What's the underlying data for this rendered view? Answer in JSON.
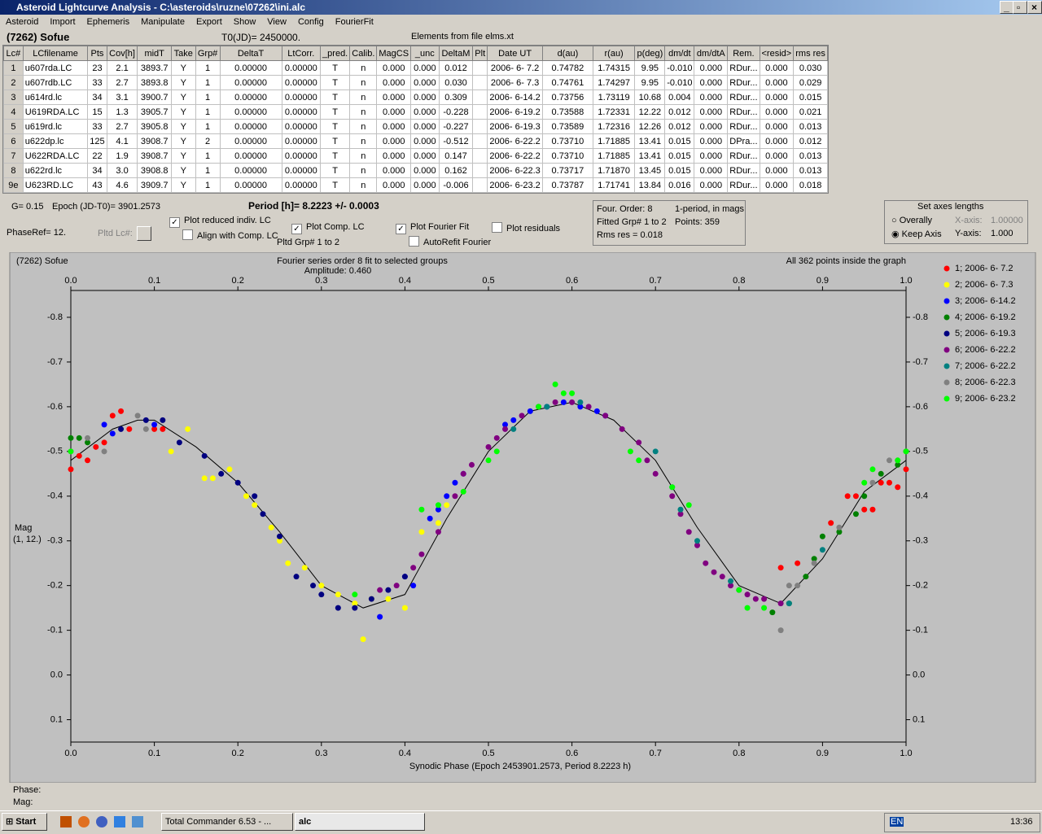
{
  "window": {
    "title": "Asteroid Lightcurve Analysis - C:\\asteroids\\ruzne\\07262\\ini.alc"
  },
  "menu": [
    "Asteroid",
    "Import",
    "Ephemeris",
    "Manipulate",
    "Export",
    "Show",
    "View",
    "Config",
    "FourierFit"
  ],
  "header": {
    "object": "(7262) Sofue",
    "t0": "T0(JD)= 2450000.",
    "elements": "Elements from file elms.xt"
  },
  "table": {
    "columns": [
      "Lc#",
      "LCfilename",
      "Pts",
      "Cov[h]",
      "midT",
      "Take",
      "Grp#",
      "DeltaT",
      "LtCorr.",
      "_pred.",
      "Calib.",
      "MagCS",
      "_unc",
      "DeltaM",
      "Plt",
      "Date UT",
      "d(au)",
      "r(au)",
      "p(deg)",
      "dm/dt",
      "dm/dtA",
      "Rem.",
      "<resid>",
      "rms res"
    ],
    "rows": [
      [
        "1",
        "u607rda.LC",
        "23",
        "2.1",
        "3893.7",
        "Y",
        "1",
        "0.00000",
        "0.00000",
        "T",
        "n",
        "0.000",
        "0.000",
        "0.012",
        null,
        "2006- 6- 7.2",
        "0.74782",
        "1.74315",
        "9.95",
        "-0.010",
        "0.000",
        "RDur...",
        "0.000",
        "0.030"
      ],
      [
        "2",
        "u607rdb.LC",
        "33",
        "2.7",
        "3893.8",
        "Y",
        "1",
        "0.00000",
        "0.00000",
        "T",
        "n",
        "0.000",
        "0.000",
        "0.030",
        null,
        "2006- 6- 7.3",
        "0.74761",
        "1.74297",
        "9.95",
        "-0.010",
        "0.000",
        "RDur...",
        "0.000",
        "0.029"
      ],
      [
        "3",
        "u614rd.lc",
        "34",
        "3.1",
        "3900.7",
        "Y",
        "1",
        "0.00000",
        "0.00000",
        "T",
        "n",
        "0.000",
        "0.000",
        "0.309",
        null,
        "2006- 6-14.2",
        "0.73756",
        "1.73119",
        "10.68",
        "0.004",
        "0.000",
        "RDur...",
        "0.000",
        "0.015"
      ],
      [
        "4",
        "U619RDA.LC",
        "15",
        "1.3",
        "3905.7",
        "Y",
        "1",
        "0.00000",
        "0.00000",
        "T",
        "n",
        "0.000",
        "0.000",
        "-0.228",
        null,
        "2006- 6-19.2",
        "0.73588",
        "1.72331",
        "12.22",
        "0.012",
        "0.000",
        "RDur...",
        "0.000",
        "0.021"
      ],
      [
        "5",
        "u619rd.lc",
        "33",
        "2.7",
        "3905.8",
        "Y",
        "1",
        "0.00000",
        "0.00000",
        "T",
        "n",
        "0.000",
        "0.000",
        "-0.227",
        null,
        "2006- 6-19.3",
        "0.73589",
        "1.72316",
        "12.26",
        "0.012",
        "0.000",
        "RDur...",
        "0.000",
        "0.013"
      ],
      [
        "6",
        "u622dp.lc",
        "125",
        "4.1",
        "3908.7",
        "Y",
        "2",
        "0.00000",
        "0.00000",
        "T",
        "n",
        "0.000",
        "0.000",
        "-0.512",
        null,
        "2006- 6-22.2",
        "0.73710",
        "1.71885",
        "13.41",
        "0.015",
        "0.000",
        "DPra...",
        "0.000",
        "0.012"
      ],
      [
        "7",
        "U622RDA.LC",
        "22",
        "1.9",
        "3908.7",
        "Y",
        "1",
        "0.00000",
        "0.00000",
        "T",
        "n",
        "0.000",
        "0.000",
        "0.147",
        null,
        "2006- 6-22.2",
        "0.73710",
        "1.71885",
        "13.41",
        "0.015",
        "0.000",
        "RDur...",
        "0.000",
        "0.013"
      ],
      [
        "8",
        "u622rd.lc",
        "34",
        "3.0",
        "3908.8",
        "Y",
        "1",
        "0.00000",
        "0.00000",
        "T",
        "n",
        "0.000",
        "0.000",
        "0.162",
        null,
        "2006- 6-22.3",
        "0.73717",
        "1.71870",
        "13.45",
        "0.015",
        "0.000",
        "RDur...",
        "0.000",
        "0.013"
      ],
      [
        "9e",
        "U623RD.LC",
        "43",
        "4.6",
        "3909.7",
        "Y",
        "1",
        "0.00000",
        "0.00000",
        "T",
        "n",
        "0.000",
        "0.000",
        "-0.006",
        null,
        "2006- 6-23.2",
        "0.73787",
        "1.71741",
        "13.84",
        "0.016",
        "0.000",
        "RDur...",
        "0.000",
        "0.018"
      ]
    ]
  },
  "controls": {
    "g": "G= 0.15",
    "epoch": "Epoch (JD-T0)= 3901.2573",
    "period": "Period [h]= 8.2223 +/- 0.0003",
    "phase_ref": "PhaseRef= 12.",
    "pltd_lc": "Pltd Lc#:",
    "checkboxes": [
      {
        "label": "Plot reduced indiv. LC",
        "checked": true
      },
      {
        "label": "Align with Comp. LC",
        "checked": false
      },
      {
        "label": "Plot Comp. LC",
        "checked": true
      },
      {
        "label": "Plot Fourier Fit",
        "checked": true
      },
      {
        "label": "AutoRefit Fourier",
        "checked": false
      },
      {
        "label": "Plot residuals",
        "checked": false
      }
    ],
    "pltd_grp": "Pltd Grp#  1   to   2",
    "info": [
      "Four. Order:  8",
      "1-period, in mags",
      "Fitted Grp# 1 to 2",
      "Points: 359",
      "Rms res      = 0.018"
    ],
    "axes": {
      "title": "Set axes lengths",
      "overally": "Overally",
      "keep": "Keep Axis",
      "x_label": "X-axis:",
      "x_value": "1.00000",
      "y_label": "Y-axis:",
      "y_value": "1.000"
    }
  },
  "chart_data": {
    "type": "scatter",
    "title": "Fourier series order 8 fit to selected groups",
    "subtitle": "Amplitude: 0.460",
    "object": "(7262) Sofue",
    "annotation": "All 362 points inside the graph",
    "x_label": "Synodic Phase (Epoch 2453901.2573, Period 8.2223 h)",
    "y_label": [
      "Mag",
      "(1, 12.)"
    ],
    "xlim": [
      0,
      1
    ],
    "xticks": [
      {
        "value": 0,
        "label": "0.0"
      },
      0.1,
      0.2,
      0.3,
      0.4,
      0.5,
      0.6,
      0.7,
      0.8,
      0.9,
      {
        "value": 1,
        "label": "1.0"
      }
    ],
    "ylim": [
      -0.86,
      0.15
    ],
    "y_inverted": true,
    "yticks": [
      -0.8,
      -0.7,
      -0.6,
      -0.5,
      -0.4,
      -0.3,
      -0.2,
      -0.1,
      {
        "value": 0,
        "label": "0.0"
      },
      0.1
    ],
    "series": [
      {
        "name": "1; 2006- 6- 7.2",
        "color": "#ff0000",
        "x": [
          0.0,
          0.01,
          0.02,
          0.03,
          0.04,
          0.05,
          0.06,
          0.07,
          0.1,
          0.11,
          0.85,
          0.87,
          0.91,
          0.93,
          0.94,
          0.95,
          0.96,
          0.97,
          0.98,
          0.99,
          1.0
        ],
        "values": [
          -0.46,
          -0.49,
          -0.48,
          -0.51,
          -0.52,
          -0.58,
          -0.59,
          -0.55,
          -0.55,
          -0.55,
          -0.24,
          -0.25,
          -0.34,
          -0.4,
          -0.4,
          -0.37,
          -0.37,
          -0.43,
          -0.43,
          -0.42,
          -0.46
        ]
      },
      {
        "name": "2; 2006- 6- 7.3",
        "color": "#ffff00",
        "x": [
          0.12,
          0.14,
          0.16,
          0.17,
          0.19,
          0.21,
          0.22,
          0.24,
          0.25,
          0.26,
          0.28,
          0.3,
          0.32,
          0.34,
          0.35,
          0.36,
          0.38,
          0.4,
          0.42,
          0.44,
          0.45
        ],
        "values": [
          -0.5,
          -0.55,
          -0.44,
          -0.44,
          -0.46,
          -0.4,
          -0.38,
          -0.33,
          -0.3,
          -0.25,
          -0.24,
          -0.2,
          -0.18,
          -0.16,
          -0.08,
          -0.17,
          -0.17,
          -0.15,
          -0.32,
          -0.34,
          -0.38
        ]
      },
      {
        "name": "3; 2006- 6-14.2",
        "color": "#0000ff",
        "x": [
          0.04,
          0.05,
          0.1,
          0.37,
          0.4,
          0.41,
          0.43,
          0.44,
          0.45,
          0.46,
          0.47,
          0.52,
          0.53,
          0.55,
          0.57,
          0.59,
          0.61,
          0.63,
          0.64
        ],
        "values": [
          -0.56,
          -0.54,
          -0.56,
          -0.13,
          -0.22,
          -0.2,
          -0.35,
          -0.37,
          -0.4,
          -0.43,
          -0.45,
          -0.56,
          -0.57,
          -0.59,
          -0.6,
          -0.61,
          -0.6,
          -0.59,
          -0.58
        ]
      },
      {
        "name": "4; 2006- 6-19.2",
        "color": "#008000",
        "x": [
          0.0,
          0.01,
          0.02,
          0.84,
          0.86,
          0.88,
          0.89,
          0.9,
          0.92,
          0.94,
          0.95,
          0.97,
          0.99,
          1.0
        ],
        "values": [
          -0.53,
          -0.53,
          -0.52,
          -0.14,
          -0.16,
          -0.22,
          -0.26,
          -0.31,
          -0.32,
          -0.36,
          -0.4,
          -0.45,
          -0.47,
          -0.5
        ]
      },
      {
        "name": "5; 2006- 6-19.3",
        "color": "#000080",
        "x": [
          0.06,
          0.09,
          0.11,
          0.13,
          0.16,
          0.18,
          0.2,
          0.22,
          0.23,
          0.25,
          0.27,
          0.29,
          0.3,
          0.32,
          0.34,
          0.36,
          0.38,
          0.4
        ],
        "values": [
          -0.55,
          -0.57,
          -0.57,
          -0.52,
          -0.49,
          -0.45,
          -0.43,
          -0.4,
          -0.36,
          -0.31,
          -0.22,
          -0.2,
          -0.18,
          -0.15,
          -0.15,
          -0.17,
          -0.19,
          -0.22
        ]
      },
      {
        "name": "6; 2006- 6-22.2",
        "color": "#800080",
        "x": [
          0.37,
          0.39,
          0.41,
          0.42,
          0.44,
          0.46,
          0.47,
          0.48,
          0.5,
          0.51,
          0.52,
          0.54,
          0.56,
          0.58,
          0.6,
          0.62,
          0.64,
          0.66,
          0.68,
          0.69,
          0.7,
          0.72,
          0.73,
          0.74,
          0.75,
          0.76,
          0.77,
          0.78,
          0.79,
          0.8,
          0.81,
          0.82,
          0.83,
          0.85
        ],
        "values": [
          -0.19,
          -0.2,
          -0.24,
          -0.27,
          -0.32,
          -0.4,
          -0.45,
          -0.47,
          -0.51,
          -0.53,
          -0.55,
          -0.58,
          -0.6,
          -0.61,
          -0.61,
          -0.6,
          -0.58,
          -0.55,
          -0.52,
          -0.48,
          -0.45,
          -0.4,
          -0.36,
          -0.32,
          -0.29,
          -0.25,
          -0.23,
          -0.22,
          -0.2,
          -0.19,
          -0.18,
          -0.17,
          -0.17,
          -0.16
        ]
      },
      {
        "name": "7; 2006- 6-22.2",
        "color": "#008080",
        "x": [
          0.53,
          0.57,
          0.61,
          0.7,
          0.72,
          0.73,
          0.75,
          0.79,
          0.86,
          0.9
        ],
        "values": [
          -0.55,
          -0.6,
          -0.61,
          -0.5,
          -0.42,
          -0.37,
          -0.3,
          -0.21,
          -0.16,
          -0.28
        ]
      },
      {
        "name": "8; 2006- 6-22.3",
        "color": "#808080",
        "x": [
          0.0,
          0.02,
          0.04,
          0.08,
          0.09,
          0.85,
          0.86,
          0.87,
          0.89,
          0.92,
          0.96,
          0.98,
          0.99
        ],
        "values": [
          -0.5,
          -0.53,
          -0.5,
          -0.58,
          -0.55,
          -0.1,
          -0.2,
          -0.2,
          -0.25,
          -0.33,
          -0.43,
          -0.48,
          -0.48
        ]
      },
      {
        "name": "9; 2006- 6-23.2",
        "color": "#00ff00",
        "x": [
          0.0,
          0.34,
          0.42,
          0.44,
          0.47,
          0.5,
          0.51,
          0.56,
          0.58,
          0.59,
          0.6,
          0.67,
          0.68,
          0.72,
          0.74,
          0.8,
          0.81,
          0.83,
          0.95,
          0.96,
          0.99,
          1.0
        ],
        "values": [
          -0.5,
          -0.18,
          -0.37,
          -0.38,
          -0.41,
          -0.48,
          -0.5,
          -0.6,
          -0.65,
          -0.63,
          -0.63,
          -0.5,
          -0.48,
          -0.42,
          -0.38,
          -0.19,
          -0.15,
          -0.15,
          -0.43,
          -0.46,
          -0.48,
          -0.5
        ]
      }
    ],
    "fit": {
      "color": "#000000",
      "x": [
        0,
        0.05,
        0.08,
        0.1,
        0.15,
        0.2,
        0.25,
        0.3,
        0.35,
        0.4,
        0.45,
        0.5,
        0.55,
        0.6,
        0.65,
        0.7,
        0.75,
        0.8,
        0.85,
        0.9,
        0.95,
        1.0
      ],
      "values": [
        -0.48,
        -0.55,
        -0.57,
        -0.57,
        -0.51,
        -0.43,
        -0.32,
        -0.2,
        -0.15,
        -0.18,
        -0.35,
        -0.5,
        -0.59,
        -0.61,
        -0.57,
        -0.48,
        -0.33,
        -0.2,
        -0.16,
        -0.26,
        -0.41,
        -0.48
      ]
    },
    "legend": "right"
  },
  "status": {
    "phase": "Phase:",
    "mag": "Mag:"
  },
  "taskbar": {
    "start": "Start",
    "tasks": [
      "Total Commander 6.53 - ...",
      "alc"
    ],
    "lang": "EN",
    "clock": "13:36"
  }
}
